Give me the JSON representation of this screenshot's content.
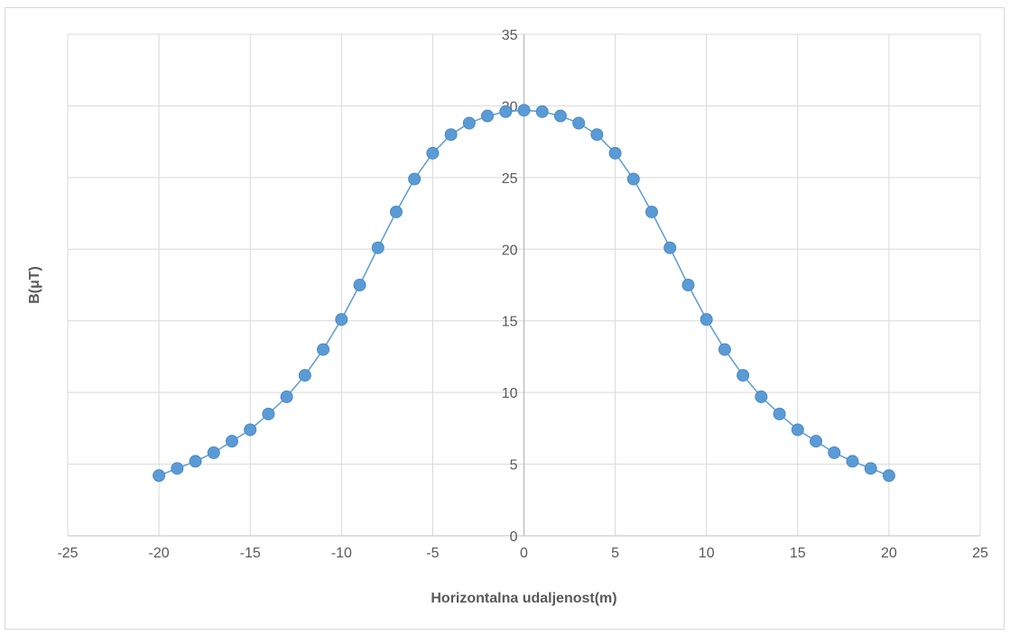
{
  "chart_data": {
    "type": "scatter",
    "title": "",
    "xlabel": "Horizontalna udaljenost(m)",
    "ylabel": "B(μT)",
    "xlim": [
      -25,
      25
    ],
    "ylim": [
      0,
      35
    ],
    "x_ticks": [
      -25,
      -20,
      -15,
      -10,
      -5,
      0,
      5,
      10,
      15,
      20,
      25
    ],
    "y_ticks": [
      0,
      5,
      10,
      15,
      20,
      25,
      30,
      35
    ],
    "grid": true,
    "legend": "none",
    "series": [
      {
        "color": "#5b9bd5",
        "line_color": "#5b9bd5",
        "marker": "circle",
        "connected": true,
        "x": [
          -20,
          -19,
          -18,
          -17,
          -16,
          -15,
          -14,
          -13,
          -12,
          -11,
          -10,
          -9,
          -8,
          -7,
          -6,
          -5,
          -4,
          -3,
          -2,
          -1,
          0,
          1,
          2,
          3,
          4,
          5,
          6,
          7,
          8,
          9,
          10,
          11,
          12,
          13,
          14,
          15,
          16,
          17,
          18,
          19,
          20
        ],
        "y": [
          4.2,
          4.7,
          5.2,
          5.8,
          6.6,
          7.4,
          8.5,
          9.7,
          11.2,
          13.0,
          15.1,
          17.5,
          20.1,
          22.6,
          24.9,
          26.7,
          28.0,
          28.8,
          29.3,
          29.6,
          29.7,
          29.6,
          29.3,
          28.8,
          28.0,
          26.7,
          24.9,
          22.6,
          20.1,
          17.5,
          15.1,
          13.0,
          11.2,
          9.7,
          8.5,
          7.4,
          6.6,
          5.8,
          5.2,
          4.7,
          4.2
        ]
      }
    ]
  }
}
